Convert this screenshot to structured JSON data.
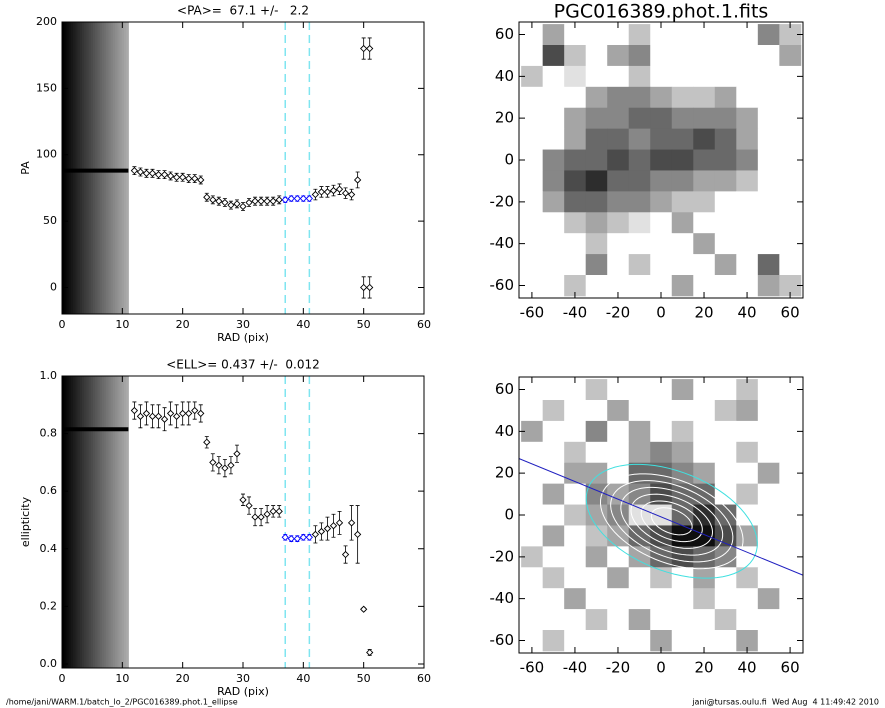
{
  "chart_data": [
    {
      "type": "scatter",
      "title": "<PA>=  67.1 +/-   2.2",
      "x_label": "RAD (pix)",
      "y_label": "PA",
      "xlim": [
        0,
        60
      ],
      "ylim": [
        -20,
        200
      ],
      "xticks": [
        0,
        10,
        20,
        30,
        40,
        50,
        60
      ],
      "yticks": [
        0,
        50,
        100,
        150,
        200
      ],
      "shade": [
        0,
        11
      ],
      "vlines": [
        37,
        41
      ],
      "vline_color": "#7fe5f0",
      "series": [
        {
          "mode": "line",
          "color": "#000000",
          "x": [
            0,
            11
          ],
          "values": [
            88,
            88
          ]
        },
        {
          "mode": "points",
          "color": "#000000",
          "x": [
            12,
            13,
            14,
            15,
            16,
            17,
            18,
            19,
            20,
            21,
            22,
            23,
            24,
            25,
            26,
            27,
            28,
            29,
            30,
            31,
            32,
            33,
            34,
            35,
            36
          ],
          "values": [
            88,
            87,
            86,
            86,
            85,
            85,
            84,
            83,
            83,
            82,
            82,
            81,
            68,
            66,
            65,
            64,
            62,
            63,
            61,
            64,
            65,
            65,
            65,
            65,
            66
          ],
          "errors": [
            3,
            3,
            3,
            3,
            3,
            3,
            3,
            3,
            3,
            3,
            3,
            3,
            3,
            3,
            3,
            3,
            3,
            3,
            3,
            3,
            3,
            3,
            3,
            3,
            3
          ]
        },
        {
          "mode": "points",
          "color": "#0000ff",
          "x": [
            37,
            38,
            39,
            40,
            41
          ],
          "values": [
            66,
            67,
            67,
            67,
            67
          ],
          "errors": [
            2,
            2,
            2,
            2,
            2
          ]
        },
        {
          "mode": "points",
          "color": "#000000",
          "x": [
            42,
            43,
            44,
            45,
            46,
            47,
            48,
            49,
            50,
            50,
            51,
            51
          ],
          "values": [
            70,
            72,
            72,
            73,
            74,
            71,
            70,
            81,
            180,
            0,
            180,
            0
          ],
          "errors": [
            4,
            4,
            4,
            4,
            4,
            4,
            4,
            6,
            8,
            8,
            8,
            8
          ]
        }
      ]
    },
    {
      "type": "scatter",
      "title": "<ELL>= 0.437 +/-  0.012",
      "x_label": "RAD (pix)",
      "y_label": "ellipticity",
      "xlim": [
        0,
        60
      ],
      "ylim": [
        -0.014,
        1.0
      ],
      "xticks": [
        0,
        10,
        20,
        30,
        40,
        50,
        60
      ],
      "yticks": [
        {
          "value": 0,
          "label": "0.0"
        },
        {
          "value": 0.2,
          "label": "0.2"
        },
        {
          "value": 0.4,
          "label": "0.4"
        },
        {
          "value": 0.6,
          "label": "0.6"
        },
        {
          "value": 0.8,
          "label": "0.8"
        },
        {
          "value": 1,
          "label": "1.0"
        }
      ],
      "shade": [
        0,
        11
      ],
      "vlines": [
        37,
        41
      ],
      "vline_color": "#7fe5f0",
      "series": [
        {
          "mode": "line",
          "color": "#000000",
          "x": [
            0,
            11
          ],
          "values": [
            0.815,
            0.815
          ]
        },
        {
          "mode": "points",
          "color": "#000000",
          "x": [
            12,
            13,
            14,
            15,
            16,
            17,
            18,
            19,
            20,
            21,
            22,
            23,
            24,
            25,
            26,
            27,
            28,
            29,
            30,
            31,
            32,
            33,
            34,
            35,
            36
          ],
          "values": [
            0.88,
            0.86,
            0.87,
            0.86,
            0.86,
            0.85,
            0.87,
            0.86,
            0.87,
            0.87,
            0.88,
            0.87,
            0.77,
            0.7,
            0.69,
            0.68,
            0.69,
            0.73,
            0.57,
            0.55,
            0.51,
            0.51,
            0.52,
            0.53,
            0.53
          ],
          "errors": [
            0.03,
            0.04,
            0.04,
            0.04,
            0.04,
            0.04,
            0.04,
            0.04,
            0.04,
            0.04,
            0.03,
            0.03,
            0.02,
            0.03,
            0.03,
            0.03,
            0.03,
            0.03,
            0.02,
            0.03,
            0.03,
            0.03,
            0.03,
            0.02,
            0.02
          ]
        },
        {
          "mode": "points",
          "color": "#0000ff",
          "x": [
            37,
            38,
            39,
            40,
            41
          ],
          "values": [
            0.44,
            0.435,
            0.435,
            0.44,
            0.44
          ],
          "errors": [
            0.01,
            0.01,
            0.01,
            0.01,
            0.01
          ]
        },
        {
          "mode": "points",
          "color": "#000000",
          "x": [
            42,
            43,
            44,
            45,
            46,
            47,
            48,
            49,
            50,
            51
          ],
          "values": [
            0.45,
            0.46,
            0.47,
            0.48,
            0.49,
            0.38,
            0.49,
            0.45,
            0.19,
            0.04
          ],
          "errors": [
            0.03,
            0.03,
            0.04,
            0.04,
            0.04,
            0.03,
            0.06,
            0.1,
            0.005,
            0.01
          ]
        }
      ]
    },
    {
      "type": "heatmap",
      "title": "PGC016389.phot.1.fits",
      "xlim": [
        -66,
        66
      ],
      "ylim": [
        -66,
        66
      ],
      "xticks": [
        -60,
        -40,
        -20,
        0,
        20,
        40,
        60
      ],
      "yticks": [
        -60,
        -40,
        -20,
        0,
        20,
        40,
        60
      ],
      "extent": [
        -65,
        65
      ],
      "grid": [
        [
          0,
          3,
          0,
          0,
          0,
          2,
          0,
          0,
          0,
          0,
          0,
          4,
          2
        ],
        [
          0,
          6,
          2,
          0,
          3,
          4,
          0,
          0,
          0,
          0,
          0,
          0,
          3
        ],
        [
          2,
          0,
          1,
          0,
          0,
          2,
          0,
          0,
          0,
          0,
          0,
          0,
          0
        ],
        [
          0,
          0,
          0,
          3,
          4,
          4,
          3,
          2,
          2,
          3,
          0,
          0,
          0
        ],
        [
          0,
          0,
          3,
          4,
          4,
          5,
          5,
          4,
          4,
          4,
          3,
          0,
          0
        ],
        [
          0,
          0,
          3,
          5,
          5,
          4,
          5,
          5,
          6,
          5,
          3,
          0,
          0
        ],
        [
          0,
          4,
          5,
          5,
          6,
          5,
          6,
          6,
          5,
          5,
          4,
          0,
          0
        ],
        [
          0,
          4,
          6,
          7,
          5,
          5,
          4,
          4,
          3,
          3,
          2,
          0,
          0
        ],
        [
          0,
          3,
          5,
          5,
          4,
          4,
          3,
          2,
          2,
          0,
          0,
          0,
          0
        ],
        [
          0,
          0,
          2,
          3,
          2,
          1,
          0,
          3,
          0,
          0,
          0,
          0,
          0
        ],
        [
          0,
          0,
          0,
          2,
          0,
          0,
          0,
          0,
          3,
          0,
          0,
          0,
          0
        ],
        [
          0,
          0,
          0,
          4,
          0,
          2,
          0,
          0,
          0,
          3,
          0,
          5,
          0
        ],
        [
          0,
          0,
          2,
          0,
          0,
          0,
          0,
          3,
          0,
          0,
          0,
          3,
          2
        ]
      ]
    },
    {
      "type": "heatmap",
      "xlim": [
        -66,
        66
      ],
      "ylim": [
        -66,
        66
      ],
      "xticks": [
        -60,
        -40,
        -20,
        0,
        20,
        40,
        60
      ],
      "yticks": [
        -60,
        -40,
        -20,
        0,
        20,
        40,
        60
      ],
      "extent": [
        -65,
        65
      ],
      "grid": [
        [
          0,
          0,
          0,
          2,
          0,
          0,
          0,
          3,
          0,
          0,
          2,
          0,
          0
        ],
        [
          0,
          2,
          0,
          0,
          3,
          0,
          0,
          0,
          0,
          2,
          3,
          0,
          0
        ],
        [
          3,
          0,
          0,
          4,
          0,
          3,
          0,
          2,
          0,
          0,
          0,
          0,
          0
        ],
        [
          0,
          0,
          2,
          0,
          0,
          3,
          4,
          3,
          0,
          0,
          2,
          0,
          0
        ],
        [
          0,
          0,
          3,
          3,
          0,
          5,
          5,
          4,
          3,
          0,
          0,
          3,
          0
        ],
        [
          0,
          3,
          0,
          4,
          3,
          4,
          6,
          5,
          5,
          0,
          2,
          0,
          0
        ],
        [
          0,
          0,
          2,
          3,
          4,
          1,
          1,
          5,
          7,
          5,
          0,
          0,
          0
        ],
        [
          0,
          3,
          0,
          2,
          3,
          5,
          6,
          8,
          8,
          6,
          3,
          0,
          0
        ],
        [
          2,
          0,
          0,
          3,
          0,
          3,
          5,
          6,
          5,
          4,
          0,
          0,
          0
        ],
        [
          0,
          2,
          0,
          0,
          3,
          0,
          2,
          0,
          3,
          0,
          2,
          0,
          0
        ],
        [
          0,
          0,
          3,
          0,
          0,
          0,
          0,
          0,
          2,
          0,
          0,
          3,
          0
        ],
        [
          0,
          0,
          0,
          2,
          0,
          3,
          0,
          0,
          0,
          2,
          0,
          0,
          0
        ],
        [
          0,
          2,
          0,
          0,
          0,
          0,
          3,
          0,
          0,
          0,
          3,
          0,
          0
        ]
      ],
      "ellipse_center": [
        5,
        -3
      ],
      "ellipse_pa": 67.1,
      "ellipse_ellipticity": 0.437,
      "ellipses": [
        {
          "sma": 42,
          "color": "#40e0e0"
        },
        {
          "sma": 35,
          "color": "#ffffff"
        },
        {
          "sma": 30,
          "color": "#ffffff"
        },
        {
          "sma": 25,
          "color": "#ffffff"
        },
        {
          "sma": 20,
          "color": "#ffffff"
        },
        {
          "sma": 15,
          "color": "#ffffff"
        },
        {
          "sma": 10,
          "color": "#ffffff"
        }
      ],
      "pa_line_color": "#2020c0"
    }
  ],
  "footer": {
    "left": "/home/jani/WARM.1/batch_lo_2/PGC016389.phot.1_ellipse",
    "right": "jani@tursas.oulu.fi  Wed Aug  4 11:49:42 2010"
  }
}
